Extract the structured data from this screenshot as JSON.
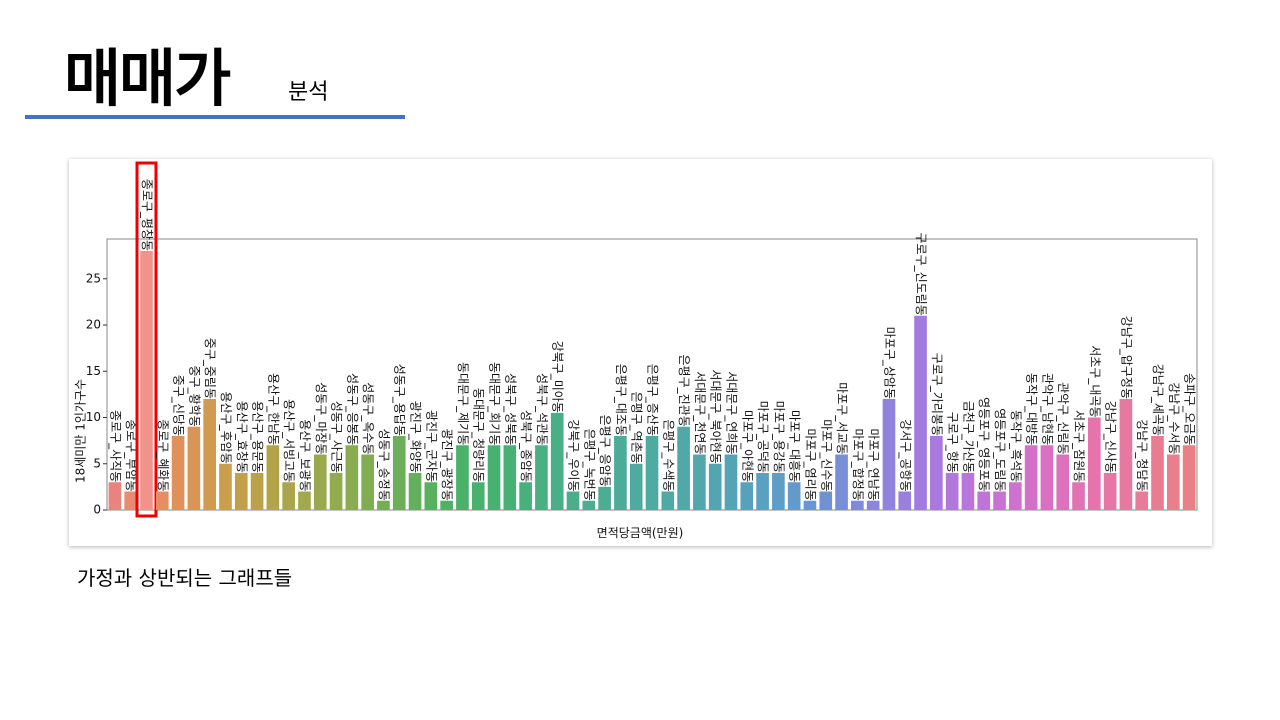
{
  "header": {
    "title": "매매가",
    "subtitle": "분석"
  },
  "caption": "가정과 상반되는 그래프들",
  "chart_data": {
    "type": "bar",
    "xlabel": "면적당금액(만원)",
    "ylabel": "18세미만 1인가구수",
    "categories": [
      "종로구_사직동",
      "종로구_부암동",
      "종로구_평창동",
      "종로구_혜화동",
      "중구_신당동",
      "중구_황학동",
      "중구_중림동",
      "용산구_후암동",
      "용산구_효창동",
      "용산구_용문동",
      "용산구_한남동",
      "용산구_서빙고동",
      "용산구_보광동",
      "성동구_마장동",
      "성동구_사근동",
      "성동구_응봉동",
      "성동구_옥수동",
      "성동구_송정동",
      "성동구_용답동",
      "광진구_화양동",
      "광진구_군자동",
      "광진구_광장동",
      "동대문구_제기동",
      "동대문구_청량리동",
      "동대문구_회기동",
      "성북구_성북동",
      "성북구_종암동",
      "성북구_석관동",
      "강북구_미아동",
      "강북구_우이동",
      "은평구_녹번동",
      "은평구_응암동",
      "은평구_대조동",
      "은평구_역촌동",
      "은평구_증산동",
      "은평구_수색동",
      "은평구_진관동",
      "서대문구_천연동",
      "서대문구_북아현동",
      "서대문구_연희동",
      "마포구_아현동",
      "마포구_공덕동",
      "마포구_용강동",
      "마포구_대흥동",
      "마포구_염리동",
      "마포구_신수동",
      "마포구_서교동",
      "마포구_합정동",
      "마포구_연남동",
      "마포구_상암동",
      "강서구_공항동",
      "구로구_신도림동",
      "구로구_가리봉동",
      "구로구_항동",
      "금천구_가산동",
      "영등포구_영등포동",
      "영등포구_도림동",
      "동작구_흑석동",
      "동작구_대방동",
      "관악구_남현동",
      "관악구_신림동",
      "서초구_잠원동",
      "서초구_내곡동",
      "강남구_신사동",
      "강남구_압구정동",
      "강남구_청담동",
      "강남구_세곡동",
      "강남구_수서동",
      "송파구_오금동"
    ],
    "values": [
      3,
      2,
      28,
      2,
      8,
      9,
      12,
      5,
      4,
      4,
      7,
      3,
      2,
      6,
      4,
      7,
      6,
      1,
      8,
      4,
      3,
      1,
      7,
      3,
      7,
      7,
      3,
      7,
      10.5,
      2,
      1,
      2.5,
      8,
      5,
      8,
      2,
      9,
      6,
      5,
      6,
      3,
      4,
      4,
      3,
      1,
      2,
      6,
      1,
      1,
      12,
      2,
      21,
      8,
      4,
      4,
      2,
      2,
      3,
      7,
      7,
      6,
      3,
      10,
      4,
      12,
      2,
      8,
      6,
      7
    ],
    "colors": [
      "#e9837f",
      "#e98a72",
      "#f0938a",
      "#e88c64",
      "#e0905a",
      "#d99555",
      "#d09a4f",
      "#c99e4c",
      "#c2a04a",
      "#bba24a",
      "#b3a44a",
      "#aba64b",
      "#a3a84c",
      "#9aa94d",
      "#92ab4e",
      "#89ac50",
      "#80ad52",
      "#76ae55",
      "#6caf58",
      "#62b05c",
      "#58b160",
      "#4fb164",
      "#4ab168",
      "#48b16d",
      "#47b172",
      "#47b077",
      "#47b07c",
      "#48b081",
      "#49af86",
      "#4aae8b",
      "#4bae90",
      "#4cad95",
      "#4dac99",
      "#4eab9d",
      "#4faaa1",
      "#50a9a5",
      "#51a8a9",
      "#52a7ad",
      "#53a6b1",
      "#55a4b6",
      "#57a2ba",
      "#5aa0bf",
      "#5e9dc4",
      "#639ac9",
      "#6996ce",
      "#7092d3",
      "#788ed6",
      "#808ad9",
      "#8986db",
      "#9182dd",
      "#997fde",
      "#a17cde",
      "#a97add",
      "#b178dc",
      "#b976da",
      "#c174d7",
      "#c872d3",
      "#cf71ce",
      "#d570c8",
      "#da70c2",
      "#de71bb",
      "#e272b4",
      "#e574ad",
      "#e776a6",
      "#e8789f",
      "#e97a98",
      "#ea7c92",
      "#ea7e8c",
      "#ea8086"
    ],
    "highlight": "종로구_평창동",
    "ylim": [
      0,
      29.3
    ],
    "yticks": [
      0,
      5,
      10,
      15,
      20,
      25
    ]
  }
}
